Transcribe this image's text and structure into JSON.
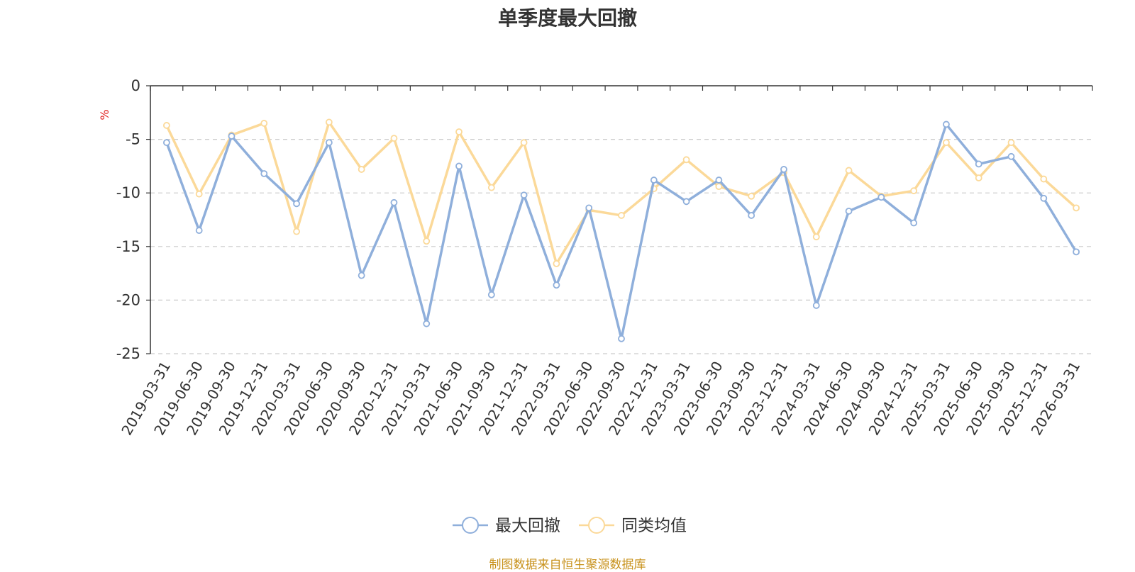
{
  "chart_data": {
    "type": "line",
    "title": "单季度最大回撤",
    "ylabel": "%",
    "ylim": [
      -25,
      0
    ],
    "yticks": [
      0,
      -5,
      -10,
      -15,
      -20,
      -25
    ],
    "grid": true,
    "legend_position": "bottom-center",
    "categories": [
      "2019-03-31",
      "2019-06-30",
      "2019-09-30",
      "2019-12-31",
      "2020-03-31",
      "2020-06-30",
      "2020-09-30",
      "2020-12-31",
      "2021-03-31",
      "2021-06-30",
      "2021-09-30",
      "2021-12-31",
      "2022-03-31",
      "2022-06-30",
      "2022-09-30",
      "2022-12-31",
      "2023-03-31",
      "2023-06-30",
      "2023-09-30",
      "2023-12-31",
      "2024-03-31",
      "2024-06-30",
      "2024-09-30",
      "2024-12-31",
      "2025-03-31",
      "2025-06-30",
      "2025-09-30",
      "2025-12-31",
      "2026-03-31"
    ],
    "series": [
      {
        "name": "最大回撤",
        "color": "#8fafdb",
        "values": [
          -5.3,
          -13.5,
          -4.7,
          -8.2,
          -11.0,
          -5.3,
          -17.7,
          -10.9,
          -22.2,
          -7.5,
          -19.5,
          -10.2,
          -18.6,
          -11.4,
          -23.6,
          -8.8,
          -10.8,
          -8.8,
          -12.1,
          -7.8,
          -20.5,
          -11.7,
          -10.4,
          -12.8,
          -3.6,
          -7.3,
          -6.6,
          -10.5,
          -15.5
        ]
      },
      {
        "name": "同类均值",
        "color": "#fbd999",
        "values": [
          -3.7,
          -10.1,
          -4.6,
          -3.5,
          -13.6,
          -3.4,
          -7.8,
          -4.9,
          -14.5,
          -4.3,
          -9.5,
          -5.3,
          -16.6,
          -11.6,
          -12.1,
          -9.6,
          -6.9,
          -9.4,
          -10.3,
          -8.1,
          -14.1,
          -7.9,
          -10.3,
          -9.8,
          -5.3,
          -8.6,
          -5.3,
          -8.7,
          -11.4
        ]
      }
    ]
  },
  "source_note": "制图数据来自恒生聚源数据库"
}
